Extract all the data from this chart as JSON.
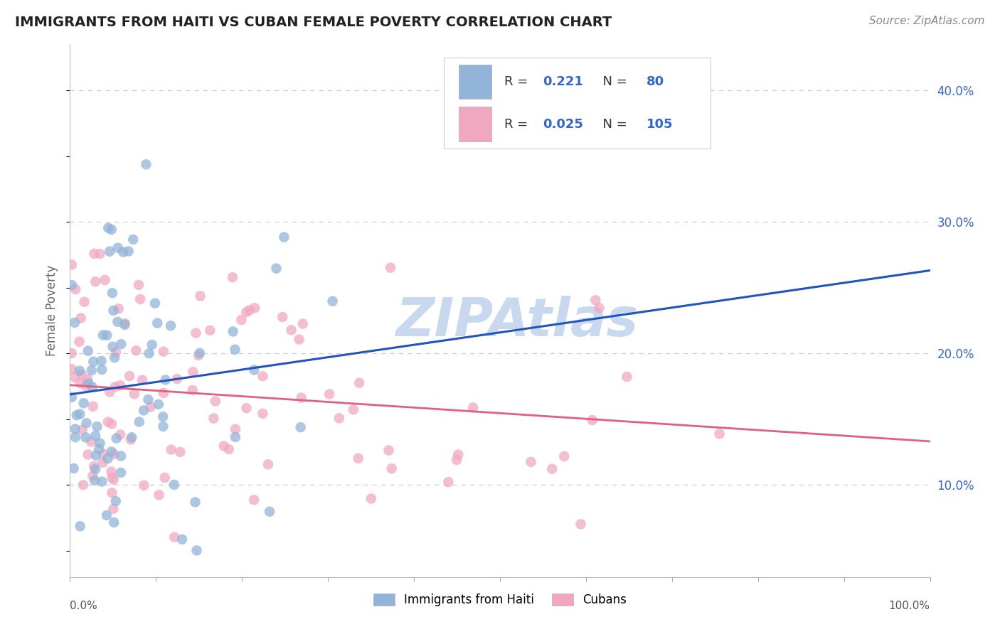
{
  "title": "IMMIGRANTS FROM HAITI VS CUBAN FEMALE POVERTY CORRELATION CHART",
  "source": "Source: ZipAtlas.com",
  "ylabel": "Female Poverty",
  "right_ytick_vals": [
    0.1,
    0.2,
    0.3,
    0.4
  ],
  "right_ytick_labels": [
    "10.0%",
    "20.0%",
    "30.0%",
    "40.0%"
  ],
  "xlim": [
    0.0,
    1.0
  ],
  "ylim": [
    0.03,
    0.435
  ],
  "haiti_color": "#92b4d8",
  "cuban_color": "#f0a8c0",
  "haiti_line_color": "#2255bb",
  "cuban_line_color": "#e06080",
  "dash_line_color": "#bbbbbb",
  "grid_color": "#cccccc",
  "background_color": "#ffffff",
  "title_color": "#222222",
  "source_color": "#888888",
  "right_axis_color": "#3366cc",
  "legend_color_R": "#3366cc",
  "legend_color_N": "#3366cc",
  "watermark_color": "#c8d8ee",
  "marker_size": 110,
  "marker_alpha": 0.75
}
